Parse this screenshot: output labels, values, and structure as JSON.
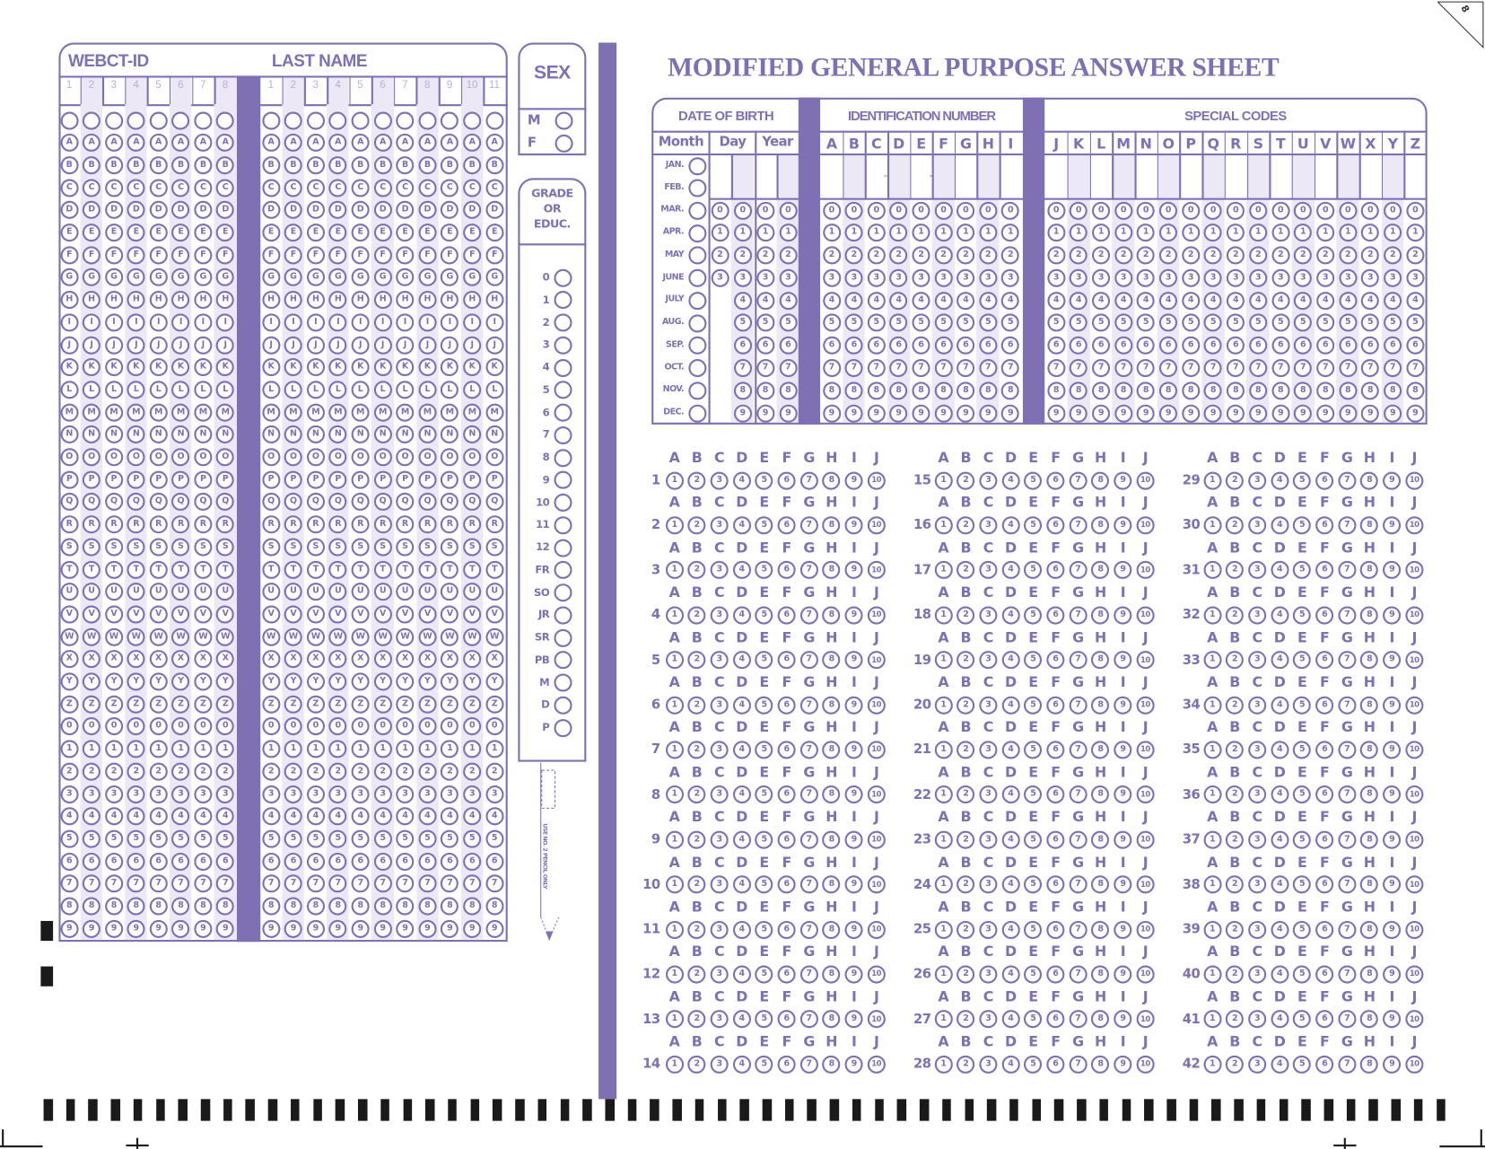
{
  "colors": {
    "ink": "#7f70b3",
    "shade": "#ece8f6",
    "column_number": "#b9b0d8",
    "timing_mark": "#1a1a1a"
  },
  "corner_number": "8",
  "title": "MODIFIED GENERAL PURPOSE ANSWER SHEET",
  "name_grid": {
    "webct_label": "WEBCT-ID",
    "lastname_label": "LAST NAME",
    "webct_columns": [
      "1",
      "2",
      "3",
      "4",
      "5",
      "6",
      "7",
      "8"
    ],
    "lastname_columns": [
      "1",
      "2",
      "3",
      "4",
      "5",
      "6",
      "7",
      "8",
      "9",
      "10",
      "11"
    ],
    "row_labels": [
      "",
      "A",
      "B",
      "C",
      "D",
      "E",
      "F",
      "G",
      "H",
      "I",
      "J",
      "K",
      "L",
      "M",
      "N",
      "O",
      "P",
      "Q",
      "R",
      "S",
      "T",
      "U",
      "V",
      "W",
      "X",
      "Y",
      "Z",
      "0",
      "1",
      "2",
      "3",
      "4",
      "5",
      "6",
      "7",
      "8",
      "9"
    ]
  },
  "sex": {
    "label": "SEX",
    "options": [
      "M",
      "F"
    ]
  },
  "grade": {
    "label_lines": [
      "GRADE",
      "OR",
      "EDUC."
    ],
    "options": [
      "0",
      "1",
      "2",
      "3",
      "4",
      "5",
      "6",
      "7",
      "8",
      "9",
      "10",
      "11",
      "12",
      "FR",
      "SO",
      "JR",
      "SR",
      "PB",
      "M",
      "D",
      "P"
    ]
  },
  "pencil_text": "USE NO. 2 PENCIL ONLY",
  "dob": {
    "label": "DATE OF BIRTH",
    "month_label": "Month",
    "day_label": "Day",
    "year_label": "Year",
    "months": [
      "JAN.",
      "FEB.",
      "MAR.",
      "APR.",
      "MAY",
      "JUNE",
      "JULY",
      "AUG.",
      "SEP.",
      "OCT.",
      "NOV.",
      "DEC."
    ],
    "day_first_digits": [
      "0",
      "1",
      "2",
      "3"
    ]
  },
  "identification": {
    "label": "IDENTIFICATION NUMBER",
    "columns": [
      "A",
      "B",
      "C",
      "D",
      "E",
      "F",
      "G",
      "H",
      "I"
    ],
    "separator": "-"
  },
  "special_codes": {
    "label": "SPECIAL CODES",
    "columns": [
      "J",
      "K",
      "L",
      "M",
      "N",
      "O",
      "P",
      "Q",
      "R",
      "S",
      "T",
      "U",
      "V",
      "W",
      "X",
      "Y",
      "Z"
    ]
  },
  "digits": [
    "0",
    "1",
    "2",
    "3",
    "4",
    "5",
    "6",
    "7",
    "8",
    "9"
  ],
  "answers": {
    "choice_letters": [
      "A",
      "B",
      "C",
      "D",
      "E",
      "F",
      "G",
      "H",
      "I",
      "J"
    ],
    "choice_numbers": [
      "1",
      "2",
      "3",
      "4",
      "5",
      "6",
      "7",
      "8",
      "9",
      "10"
    ],
    "questions": [
      "1",
      "2",
      "3",
      "4",
      "5",
      "6",
      "7",
      "8",
      "9",
      "10",
      "11",
      "12",
      "13",
      "14",
      "15",
      "16",
      "17",
      "18",
      "19",
      "20",
      "21",
      "22",
      "23",
      "24",
      "25",
      "26",
      "27",
      "28",
      "29",
      "30",
      "31",
      "32",
      "33",
      "34",
      "35",
      "36",
      "37",
      "38",
      "39",
      "40",
      "41",
      "42"
    ]
  }
}
